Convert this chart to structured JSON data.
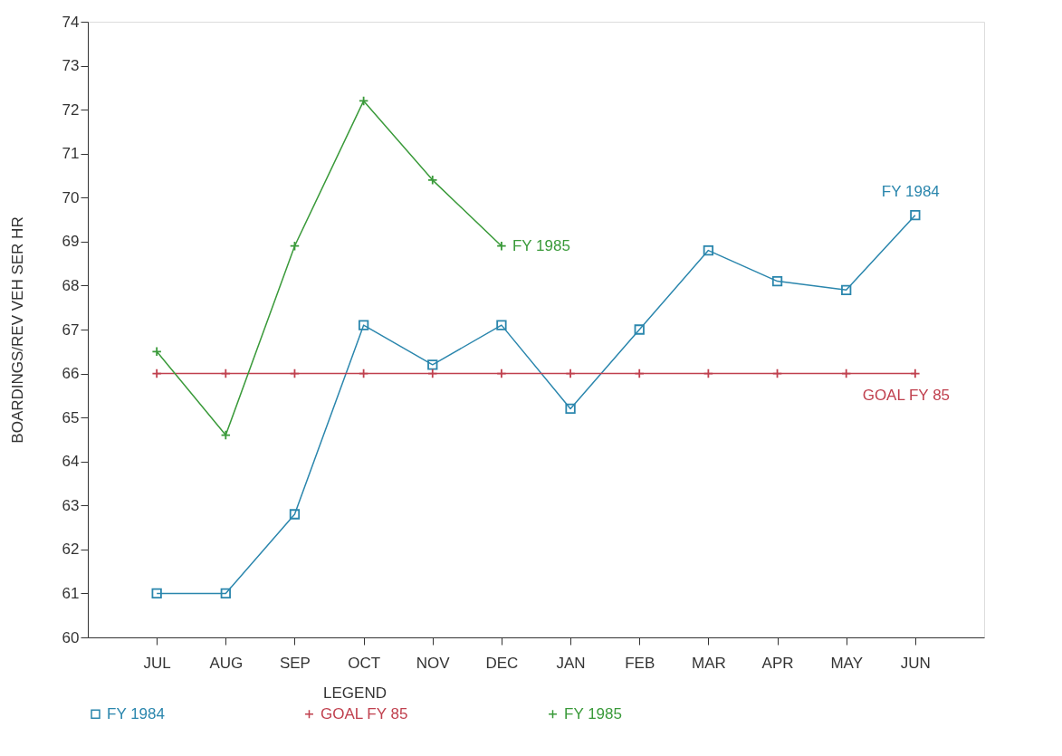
{
  "chart_data": {
    "type": "line",
    "ylabel": "BOARDINGS/REV VEH SER HR",
    "legend_title": "LEGEND",
    "categories": [
      "JUL",
      "AUG",
      "SEP",
      "OCT",
      "NOV",
      "DEC",
      "JAN",
      "FEB",
      "MAR",
      "APR",
      "MAY",
      "JUN"
    ],
    "series": [
      {
        "name": "FY 1984",
        "color": "#2a86ad",
        "marker": "square",
        "values": [
          61.0,
          61.0,
          62.8,
          67.1,
          66.2,
          67.1,
          65.2,
          67.0,
          68.8,
          68.1,
          67.9,
          69.6
        ]
      },
      {
        "name": "GOAL FY 85",
        "color": "#c0404e",
        "marker": "cross",
        "values": [
          66,
          66,
          66,
          66,
          66,
          66,
          66,
          66,
          66,
          66,
          66,
          66
        ]
      },
      {
        "name": "FY 1985",
        "color": "#3a9a3a",
        "marker": "cross",
        "values": [
          66.5,
          64.6,
          68.9,
          72.2,
          70.4,
          68.9,
          null,
          null,
          null,
          null,
          null,
          null
        ]
      }
    ],
    "ylim": [
      60,
      74
    ],
    "yticks": [
      60,
      61,
      62,
      63,
      64,
      65,
      66,
      67,
      68,
      69,
      70,
      71,
      72,
      73,
      74
    ],
    "grid": false,
    "legend": "bottom",
    "line_style": "solid",
    "annotations": [
      {
        "text": "FY 1985",
        "x": "DEC",
        "y": 68.9
      },
      {
        "text": "FY 1984",
        "x": "JUN",
        "y": 69.6
      },
      {
        "text": "GOAL FY 85",
        "x": "JUN",
        "y": 66
      }
    ]
  }
}
